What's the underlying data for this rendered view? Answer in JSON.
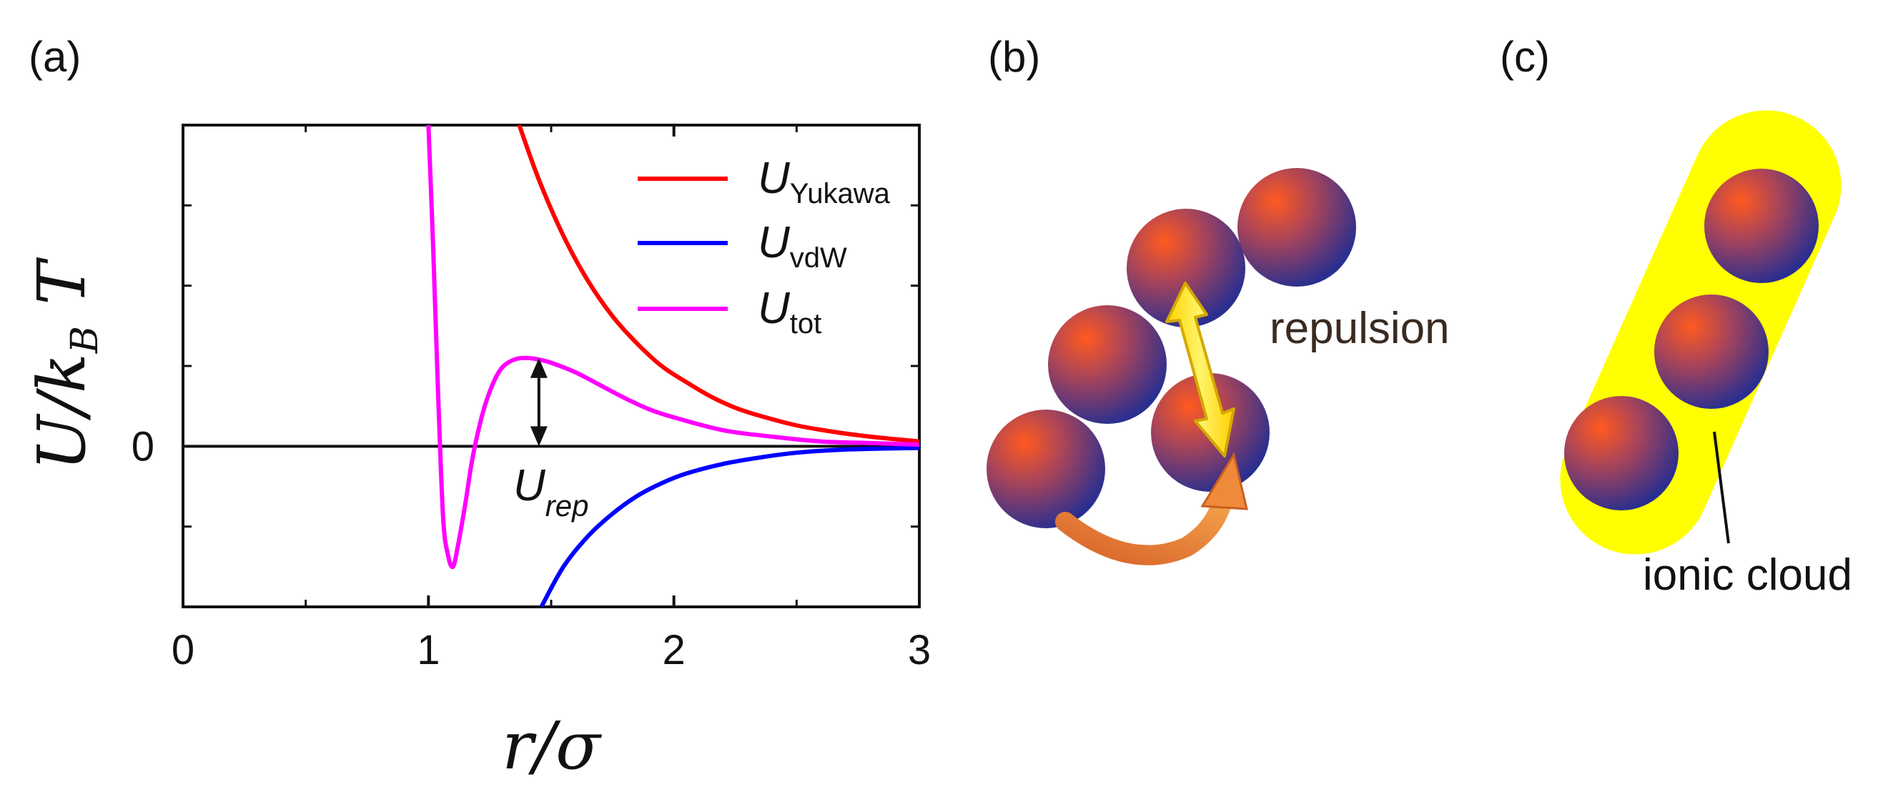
{
  "panels": {
    "a": "(a)",
    "b": "(b)",
    "c": "(c)"
  },
  "chart_data": {
    "type": "line",
    "title": "",
    "xlabel": "r/σ",
    "ylabel": "U/k_B T",
    "xlim": [
      0,
      3
    ],
    "ylim": [
      -1,
      2
    ],
    "x_ticks": [
      0,
      1,
      2,
      3
    ],
    "x_tick_labels": [
      "0",
      "1",
      "2",
      "3"
    ],
    "y_ticks": [
      0
    ],
    "y_tick_labels": [
      "0"
    ],
    "grid": false,
    "legend_position": "top-right",
    "series": [
      {
        "name": "U_Yukawa",
        "label_main": "U",
        "label_sub": "Yukawa",
        "color": "#ff0000",
        "x": [
          1.37,
          1.45,
          1.55,
          1.65,
          1.75,
          1.85,
          1.95,
          2.05,
          2.15,
          2.25,
          2.35,
          2.5,
          2.65,
          2.8,
          3.0
        ],
        "y": [
          2.0,
          1.66,
          1.31,
          1.03,
          0.81,
          0.64,
          0.5,
          0.4,
          0.31,
          0.24,
          0.19,
          0.13,
          0.09,
          0.06,
          0.03
        ]
      },
      {
        "name": "U_vdW",
        "label_main": "U",
        "label_sub": "vdW",
        "color": "#0000ff",
        "x": [
          1.46,
          1.55,
          1.65,
          1.75,
          1.85,
          1.95,
          2.05,
          2.2,
          2.35,
          2.5,
          2.7,
          3.0
        ],
        "y": [
          -1.0,
          -0.75,
          -0.56,
          -0.42,
          -0.31,
          -0.23,
          -0.17,
          -0.11,
          -0.07,
          -0.04,
          -0.02,
          -0.01
        ]
      },
      {
        "name": "U_tot",
        "label_main": "U",
        "label_sub": "tot",
        "color": "#ff00ff",
        "x": [
          1.0,
          1.02,
          1.04,
          1.06,
          1.08,
          1.1,
          1.12,
          1.15,
          1.18,
          1.22,
          1.26,
          1.3,
          1.35,
          1.4,
          1.45,
          1.5,
          1.6,
          1.7,
          1.8,
          1.9,
          2.0,
          2.2,
          2.4,
          2.6,
          2.8,
          3.0
        ],
        "y": [
          2.0,
          1.2,
          0.3,
          -0.45,
          -0.68,
          -0.75,
          -0.62,
          -0.36,
          -0.07,
          0.2,
          0.38,
          0.49,
          0.54,
          0.55,
          0.54,
          0.52,
          0.46,
          0.38,
          0.3,
          0.23,
          0.18,
          0.1,
          0.06,
          0.03,
          0.02,
          0.01
        ]
      }
    ],
    "annotations": [
      {
        "text_main": "U",
        "text_sub": "rep",
        "arrow_x": 1.45,
        "arrow_y_from": 0.0,
        "arrow_y_to": 0.55
      }
    ]
  },
  "diagram_b": {
    "label": "repulsion",
    "colors": {
      "sphere_core": "#ff5a1f",
      "sphere_edge": "#2a2f8f",
      "arrow_yellow": "#ffe000",
      "arrow_orange": "#e8762f",
      "text": "#3a2a20"
    }
  },
  "diagram_c": {
    "label": "ionic cloud",
    "colors": {
      "cloud": "#ffff00",
      "text": "#111111"
    }
  }
}
